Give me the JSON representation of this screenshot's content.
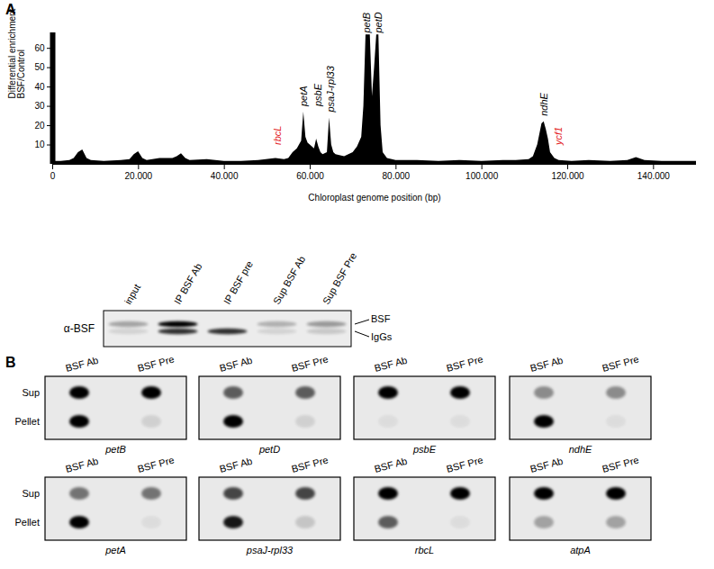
{
  "chart_data": {
    "type": "area",
    "x_label": "Chloroplast genome position (bp)",
    "y_label": "Differential enrichment\nBSF/Control",
    "color": "#000000",
    "x": [
      0,
      2000,
      4000,
      5000,
      6000,
      7000,
      8000,
      9000,
      12000,
      16000,
      18000,
      19000,
      20000,
      21000,
      22000,
      25000,
      28000,
      29000,
      30000,
      31000,
      32000,
      36000,
      40000,
      44000,
      48000,
      52000,
      54000,
      55000,
      56000,
      57000,
      58000,
      58500,
      59000,
      59500,
      60000,
      61000,
      61500,
      62000,
      62500,
      63000,
      64000,
      64500,
      65000,
      65500,
      66000,
      68000,
      70000,
      71000,
      72000,
      72500,
      73000,
      73500,
      74000,
      74500,
      75000,
      75500,
      76000,
      76500,
      77000,
      78000,
      80000,
      85000,
      90000,
      95000,
      100000,
      105000,
      108000,
      111000,
      112000,
      113000,
      114000,
      114500,
      115000,
      115500,
      116000,
      117000,
      118000,
      121000,
      125000,
      130000,
      134000,
      136000,
      138000,
      142000,
      146000,
      150000
    ],
    "values": [
      1.5,
      1.5,
      2,
      3,
      6,
      7.5,
      3,
      2,
      1.5,
      2,
      2.5,
      5,
      6.5,
      3,
      2,
      3,
      3,
      4,
      5.5,
      3,
      2,
      2.5,
      1.5,
      1.5,
      2,
      3,
      2.5,
      3,
      6,
      8,
      12,
      27,
      14,
      11,
      10,
      8,
      13,
      9,
      6,
      5,
      6,
      24,
      10,
      6,
      5,
      4,
      6,
      9,
      14,
      30,
      67,
      67,
      67,
      35,
      50,
      67,
      67,
      20,
      6,
      3,
      2,
      2,
      1.5,
      2,
      1.5,
      2,
      2,
      2.5,
      4,
      10,
      21,
      22,
      18,
      13,
      6,
      3,
      2,
      1.5,
      2,
      1.5,
      2,
      3.5,
      2,
      1.5,
      1.5,
      1.5
    ],
    "xlim": [
      0,
      150000
    ],
    "ylim": [
      0,
      68
    ],
    "xticks": [
      0,
      {
        "value": 20000,
        "label": "20.000"
      },
      {
        "value": 40000,
        "label": "40.000"
      },
      {
        "value": 60000,
        "label": "60.000"
      },
      {
        "value": 80000,
        "label": "80.000"
      },
      {
        "value": 100000,
        "label": "100.000"
      },
      {
        "value": 120000,
        "label": "120.000"
      },
      {
        "value": 140000,
        "label": "140.000"
      }
    ],
    "yticks": [
      10,
      20,
      30,
      40,
      50,
      60
    ],
    "annotations": [
      {
        "text": "rbcL",
        "x": 52500,
        "y": 10,
        "color": "#e31a1c"
      },
      {
        "text": "petA",
        "x": 58500,
        "y": 30,
        "color": "#000000"
      },
      {
        "text": "psbE",
        "x": 61800,
        "y": 30,
        "color": "#000000"
      },
      {
        "text": "psaJ-rpl33",
        "x": 64900,
        "y": 27,
        "color": "#000000"
      },
      {
        "text": "petB",
        "x": 73300,
        "y": 68,
        "color": "#000000"
      },
      {
        "text": "petD",
        "x": 76000,
        "y": 68,
        "color": "#000000"
      },
      {
        "text": "ndhE",
        "x": 114500,
        "y": 25,
        "color": "#000000"
      },
      {
        "text": "ycf1",
        "x": 117800,
        "y": 10,
        "color": "#e31a1c"
      }
    ]
  },
  "panel_labels": [
    "A",
    "B"
  ],
  "western_blot": {
    "antibody": "α-BSF",
    "lanes": [
      "input",
      "IP BSF Ab",
      "IP BSF pre",
      "Sup BSF Ab",
      "Sup BSF Pre"
    ],
    "bands": [
      {
        "name": "BSF",
        "intensities": [
          0.3,
          1.0,
          0.0,
          0.25,
          0.35
        ]
      },
      {
        "name": "IgGs",
        "intensities": [
          0.1,
          0.8,
          0.8,
          0.1,
          0.15
        ]
      }
    ]
  },
  "dot_blots": {
    "columns": [
      "BSF Ab",
      "BSF Pre"
    ],
    "rows": [
      "Sup",
      "Pellet"
    ],
    "blots": [
      {
        "gene": "petB",
        "intensities": [
          [
            1.0,
            1.0
          ],
          [
            1.0,
            0.1
          ]
        ]
      },
      {
        "gene": "petD",
        "intensities": [
          [
            0.6,
            0.6
          ],
          [
            1.0,
            0.1
          ]
        ]
      },
      {
        "gene": "psbE",
        "intensities": [
          [
            1.0,
            1.0
          ],
          [
            0.05,
            0.05
          ]
        ]
      },
      {
        "gene": "ndhE",
        "intensities": [
          [
            0.4,
            0.4
          ],
          [
            1.0,
            0.05
          ]
        ]
      },
      {
        "gene": "petA",
        "intensities": [
          [
            0.5,
            0.5
          ],
          [
            1.0,
            0.05
          ]
        ]
      },
      {
        "gene": "psaJ-rpl33",
        "intensities": [
          [
            0.7,
            0.7
          ],
          [
            0.9,
            0.15
          ]
        ]
      },
      {
        "gene": "rbcL",
        "intensities": [
          [
            1.0,
            1.0
          ],
          [
            0.6,
            0.05
          ]
        ]
      },
      {
        "gene": "atpA",
        "intensities": [
          [
            1.0,
            1.0
          ],
          [
            0.3,
            0.3
          ]
        ]
      }
    ]
  }
}
